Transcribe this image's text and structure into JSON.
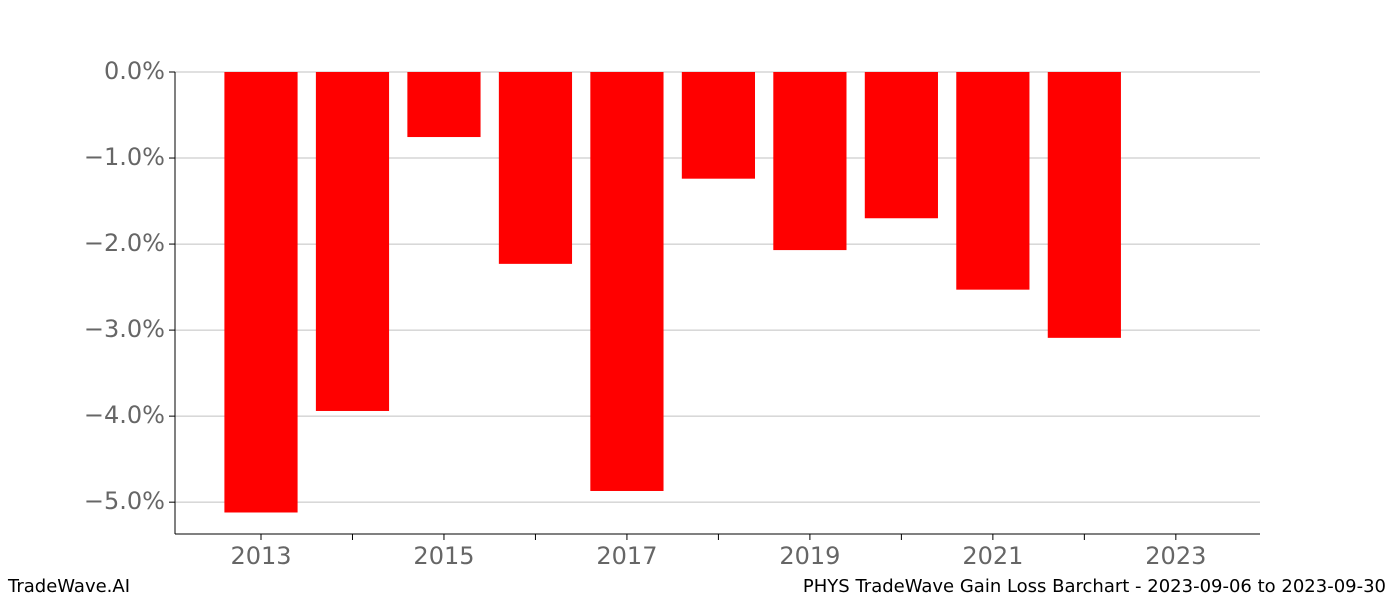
{
  "chart_data": {
    "type": "bar",
    "x": [
      2013,
      2014,
      2015,
      2016,
      2017,
      2018,
      2019,
      2020,
      2021,
      2022
    ],
    "values": [
      -5.12,
      -3.94,
      -0.756,
      -2.23,
      -4.87,
      -1.24,
      -2.07,
      -1.7,
      -2.53,
      -3.09
    ],
    "color": "#ff0000",
    "xlim": [
      2012.06,
      2023.92
    ],
    "xticks": [
      2013,
      2015,
      2017,
      2019,
      2021,
      2023
    ],
    "x_minor_ticks": [
      2014,
      2016,
      2018,
      2020,
      2022
    ],
    "ylim": [
      -5.37,
      0
    ],
    "yticks": [
      {
        "value": 0,
        "label": "0.0%"
      },
      {
        "value": -1,
        "label": "−1.0%"
      },
      {
        "value": -2,
        "label": "−2.0%"
      },
      {
        "value": -3,
        "label": "−3.0%"
      },
      {
        "value": -4,
        "label": "−4.0%"
      },
      {
        "value": -5,
        "label": "−5.0%"
      }
    ],
    "grid": true
  },
  "footer": {
    "left": "TradeWave.AI",
    "right": "PHYS TradeWave Gain Loss Barchart - 2023-09-06 to 2023-09-30"
  }
}
